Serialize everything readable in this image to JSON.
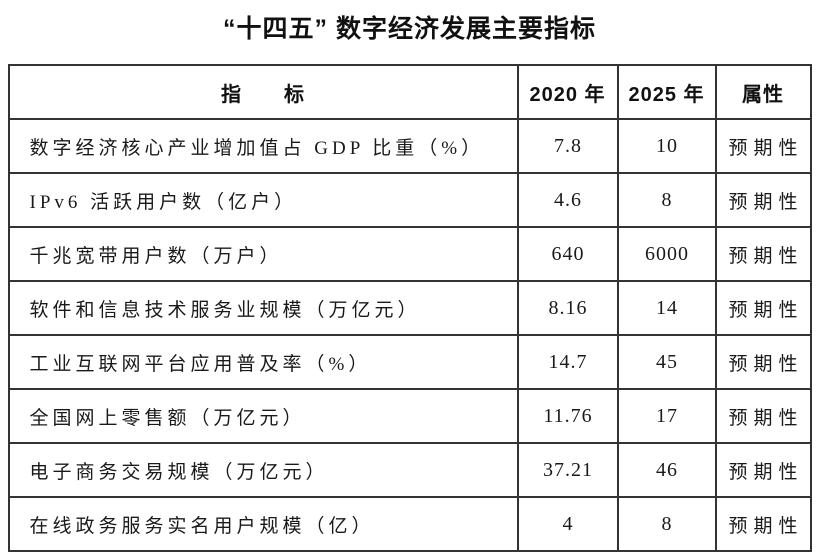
{
  "title": "“十四五” 数字经济发展主要指标",
  "table": {
    "headers": [
      "指　　标",
      "2020 年",
      "2025 年",
      "属性"
    ],
    "rows": [
      {
        "indicator": "数字经济核心产业增加值占 GDP 比重（%）",
        "y2020": "7.8",
        "y2025": "10",
        "attribute": "预期性"
      },
      {
        "indicator": "IPv6 活跃用户数（亿户）",
        "y2020": "4.6",
        "y2025": "8",
        "attribute": "预期性"
      },
      {
        "indicator": "千兆宽带用户数（万户）",
        "y2020": "640",
        "y2025": "6000",
        "attribute": "预期性"
      },
      {
        "indicator": "软件和信息技术服务业规模（万亿元）",
        "y2020": "8.16",
        "y2025": "14",
        "attribute": "预期性"
      },
      {
        "indicator": "工业互联网平台应用普及率（%）",
        "y2020": "14.7",
        "y2025": "45",
        "attribute": "预期性"
      },
      {
        "indicator": "全国网上零售额（万亿元）",
        "y2020": "11.76",
        "y2025": "17",
        "attribute": "预期性"
      },
      {
        "indicator": "电子商务交易规模（万亿元）",
        "y2020": "37.21",
        "y2025": "46",
        "attribute": "预期性"
      },
      {
        "indicator": "在线政务服务实名用户规模（亿）",
        "y2020": "4",
        "y2025": "8",
        "attribute": "预期性"
      }
    ]
  },
  "colors": {
    "border": "#333333",
    "text": "#1a1a1a",
    "background": "#ffffff"
  }
}
